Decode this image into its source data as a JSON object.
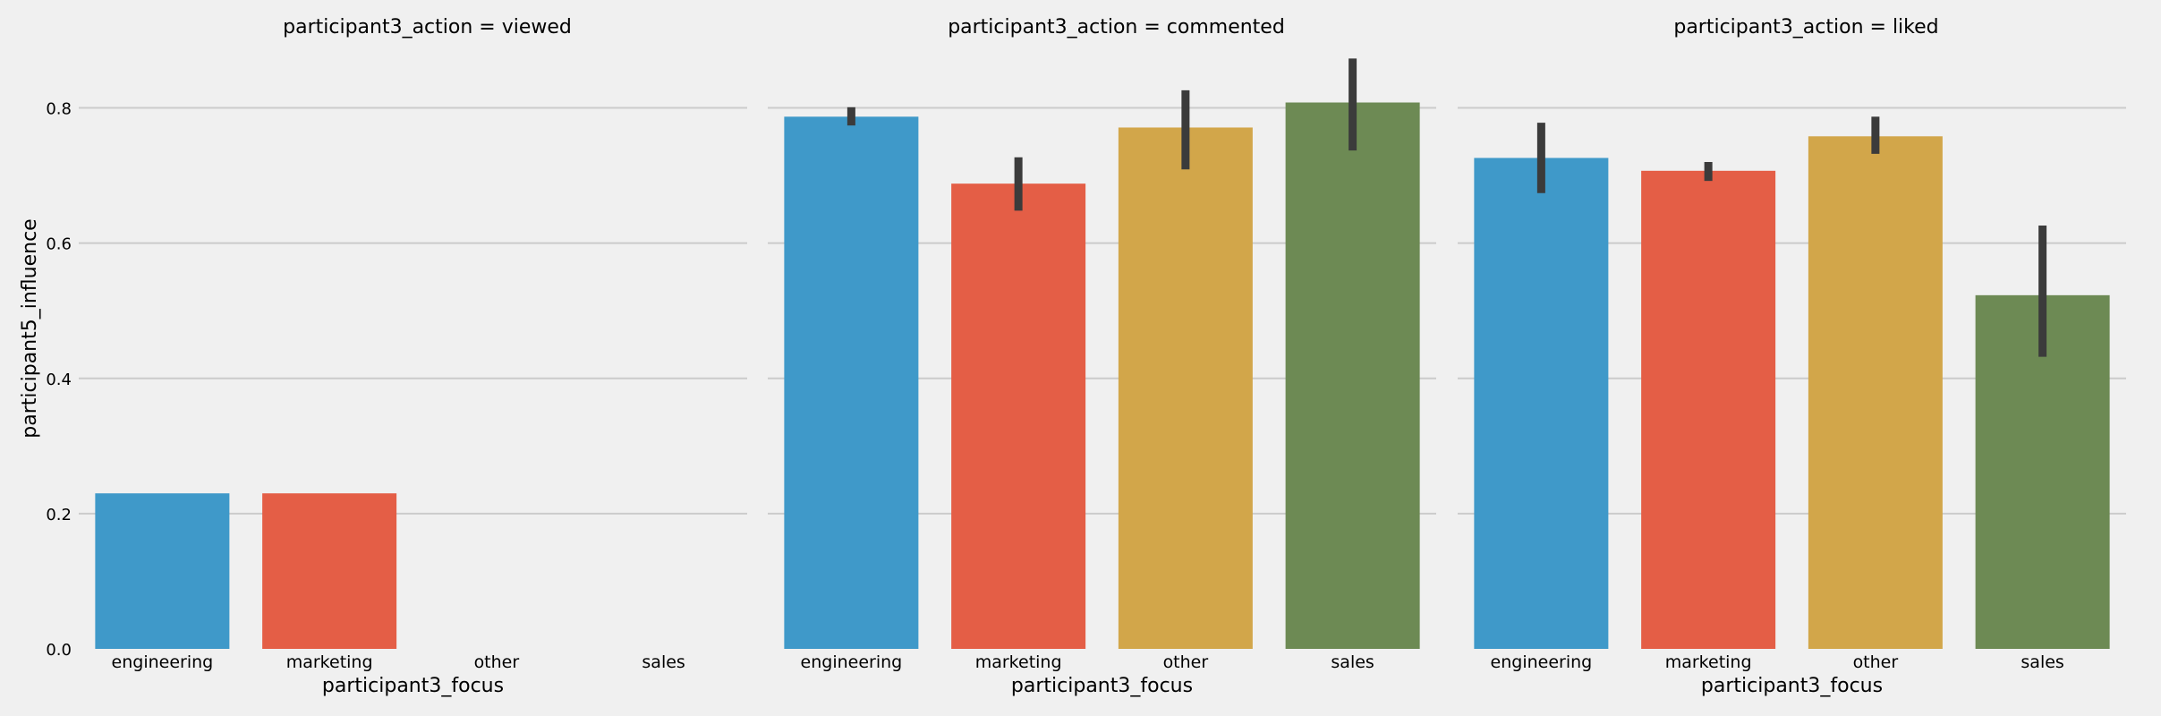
{
  "chart_data": {
    "type": "bar",
    "categories": [
      "engineering",
      "marketing",
      "other",
      "sales"
    ],
    "xlabel": "participant3_focus",
    "ylabel": "participant5_influence",
    "ylim": [
      0,
      0.9
    ],
    "yticks": [
      0.0,
      0.2,
      0.4,
      0.6,
      0.8
    ],
    "grid": true,
    "colors": [
      "#3f99c9",
      "#e45e46",
      "#d2a64a",
      "#6d8a54"
    ],
    "error_bar_color": "#3b3b3b",
    "facets": [
      {
        "title": "participant3_action = viewed",
        "values": [
          0.23,
          0.23,
          null,
          null
        ],
        "errors": [
          null,
          null,
          null,
          null
        ]
      },
      {
        "title": "participant3_action = commented",
        "values": [
          0.787,
          0.688,
          0.771,
          0.808
        ],
        "errors": [
          [
            0.774,
            0.801
          ],
          [
            0.648,
            0.727
          ],
          [
            0.709,
            0.826
          ],
          [
            0.737,
            0.873
          ]
        ]
      },
      {
        "title": "participant3_action = liked",
        "values": [
          0.726,
          0.707,
          0.758,
          0.523
        ],
        "errors": [
          [
            0.674,
            0.778
          ],
          [
            0.692,
            0.72
          ],
          [
            0.732,
            0.787
          ],
          [
            0.432,
            0.626
          ]
        ]
      }
    ]
  }
}
